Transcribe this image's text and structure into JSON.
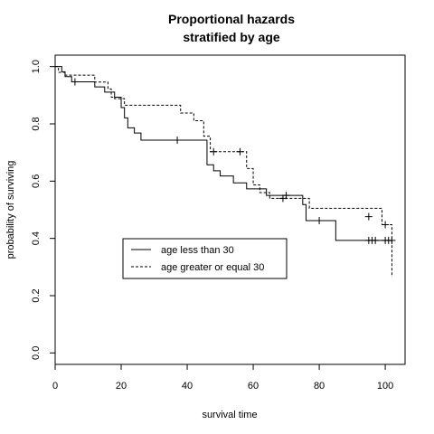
{
  "chart_data": {
    "type": "line",
    "title": [
      "Proportional hazards",
      "stratified by age"
    ],
    "xlabel": "survival time",
    "ylabel": "probability of surviving",
    "xlim": [
      0,
      106
    ],
    "ylim": [
      -0.04,
      1.04
    ],
    "xticks": [
      0,
      20,
      40,
      60,
      80,
      100
    ],
    "yticks": [
      0.0,
      0.2,
      0.4,
      0.6,
      0.8,
      1.0
    ],
    "xtick_labels": [
      "0",
      "20",
      "40",
      "60",
      "80",
      "100"
    ],
    "ytick_labels": [
      "0.0",
      "0.2",
      "0.4",
      "0.6",
      "0.8",
      "1.0"
    ],
    "grid": false,
    "legend_position": "center-left",
    "series": [
      {
        "name": "age less than 30",
        "line_style": "solid",
        "x": [
          0,
          2,
          3,
          5,
          12,
          15,
          18,
          20,
          21,
          22,
          24,
          26,
          46,
          48,
          50,
          54,
          58,
          64,
          75,
          76,
          85,
          102
        ],
        "y": [
          1.0,
          0.982,
          0.965,
          0.947,
          0.929,
          0.911,
          0.893,
          0.857,
          0.821,
          0.786,
          0.768,
          0.743,
          0.657,
          0.636,
          0.618,
          0.594,
          0.573,
          0.55,
          0.518,
          0.462,
          0.393,
          0.393
        ],
        "censored": [
          [
            6,
            0.947
          ],
          [
            37,
            0.743
          ],
          [
            70,
            0.55
          ],
          [
            80,
            0.462
          ],
          [
            95,
            0.393
          ],
          [
            96,
            0.393
          ],
          [
            97,
            0.393
          ],
          [
            100,
            0.393
          ],
          [
            101,
            0.393
          ],
          [
            102,
            0.393
          ]
        ]
      },
      {
        "name": "age greater or equal 30",
        "line_style": "dashed",
        "x": [
          0,
          1,
          3,
          12,
          16,
          17,
          18,
          21,
          38,
          42,
          45,
          47,
          53,
          58,
          60,
          62,
          65,
          75,
          77,
          99,
          102,
          102.01
        ],
        "y": [
          1.0,
          0.98,
          0.97,
          0.946,
          0.922,
          0.893,
          0.888,
          0.865,
          0.838,
          0.811,
          0.757,
          0.703,
          0.703,
          0.644,
          0.587,
          0.56,
          0.54,
          0.54,
          0.505,
          0.448,
          0.448,
          0.265
        ],
        "censored": [
          [
            48,
            0.703
          ],
          [
            56,
            0.703
          ],
          [
            69,
            0.54
          ],
          [
            95,
            0.476
          ],
          [
            100,
            0.448
          ]
        ]
      }
    ]
  }
}
